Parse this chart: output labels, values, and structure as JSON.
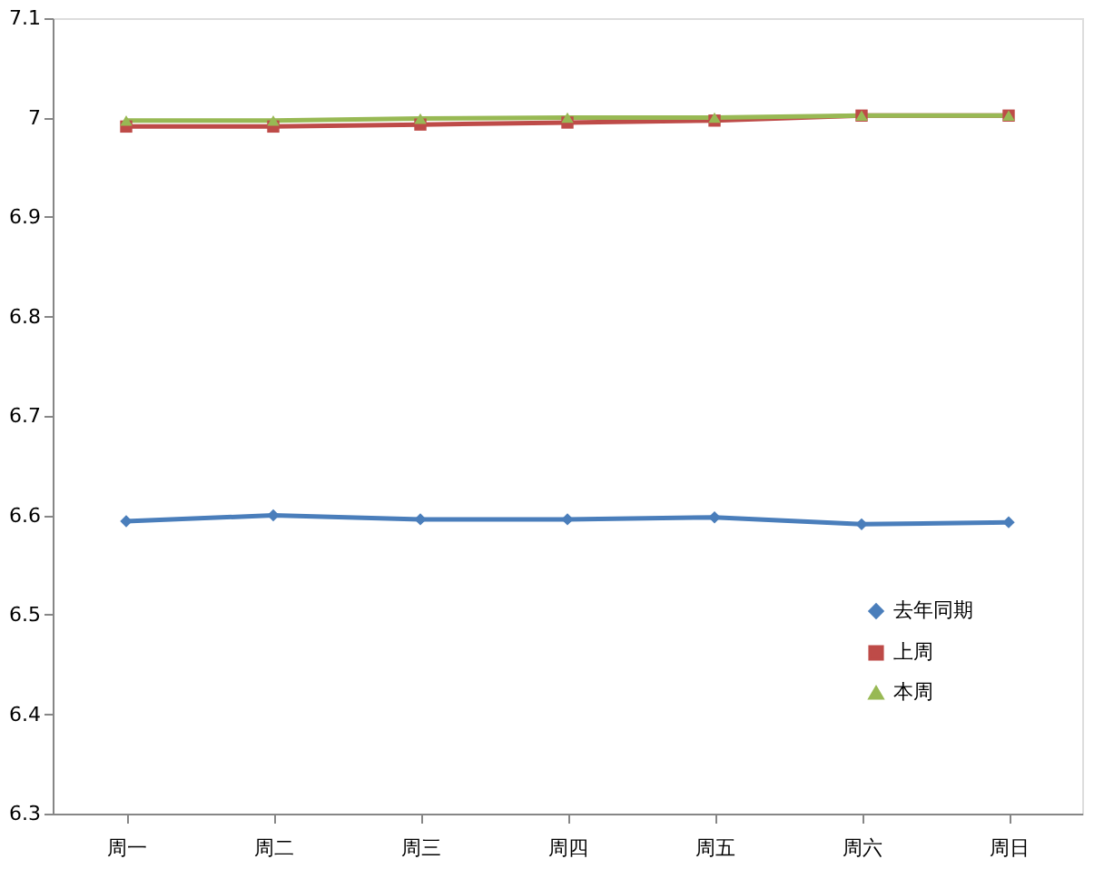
{
  "chart_data": {
    "type": "line",
    "categories": [
      "周一",
      "周二",
      "周三",
      "周四",
      "周五",
      "周六",
      "周日"
    ],
    "series": [
      {
        "name": "去年同期",
        "color": "#4a7ebb",
        "marker": "diamond",
        "values": [
          6.594,
          6.6,
          6.596,
          6.596,
          6.598,
          6.591,
          6.593
        ]
      },
      {
        "name": "上周",
        "color": "#be4b48",
        "marker": "square",
        "values": [
          6.991,
          6.991,
          6.993,
          6.995,
          6.997,
          7.002,
          7.002
        ]
      },
      {
        "name": "本周",
        "color": "#98b954",
        "marker": "triangle",
        "values": [
          6.997,
          6.997,
          6.999,
          7.0,
          7.0,
          7.002,
          7.002
        ]
      }
    ],
    "ylim": [
      6.3,
      7.1
    ],
    "yticks": [
      6.3,
      6.4,
      6.5,
      6.6,
      6.7,
      6.8,
      6.9,
      7,
      7.1
    ],
    "grid": false,
    "legend": "bottom right",
    "line_style": "solid"
  }
}
